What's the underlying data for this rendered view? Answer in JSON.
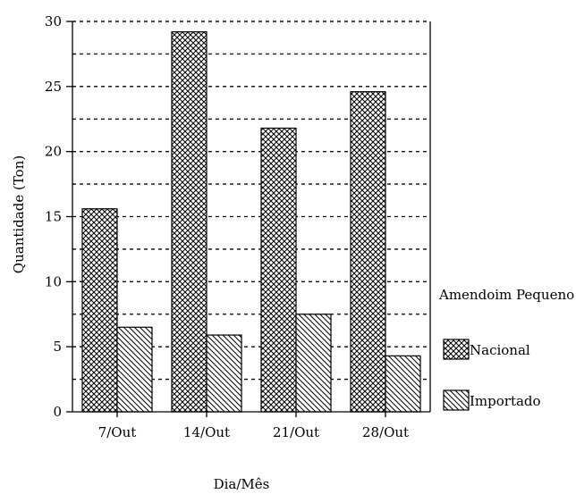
{
  "chart_data": {
    "type": "bar",
    "categories": [
      "7/Out",
      "14/Out",
      "21/Out",
      "28/Out"
    ],
    "series": [
      {
        "name": "Nacional",
        "values": [
          15.6,
          29.2,
          21.8,
          24.6
        ],
        "pattern": "crosshatch"
      },
      {
        "name": "Importado",
        "values": [
          6.5,
          5.9,
          7.5,
          4.3
        ],
        "pattern": "diagonal"
      }
    ],
    "title": "",
    "xlabel": "Dia/Mês",
    "ylabel": "Quantidade (Ton)",
    "ylim": [
      0,
      30
    ],
    "yticks": [
      0,
      5,
      10,
      15,
      20,
      25,
      30
    ],
    "grid": "horizontal dashed",
    "legend": {
      "title": "Amendoim Pequeno",
      "position": "right"
    }
  }
}
